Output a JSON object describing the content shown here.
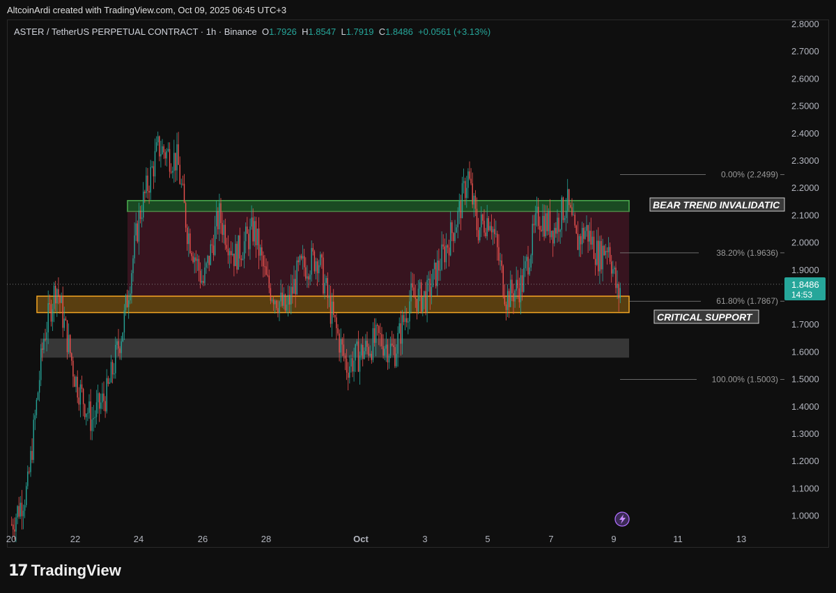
{
  "header": {
    "credit": "AltcoinArdi created with TradingView.com, Oct 09, 2025 06:45 UTC+3"
  },
  "legend": {
    "symbol": "ASTER / TetherUS PERPETUAL CONTRACT · 1h · Binance",
    "o_label": "O",
    "o_value": "1.7926",
    "h_label": "H",
    "h_value": "1.8547",
    "l_label": "L",
    "l_value": "1.7919",
    "c_label": "C",
    "c_value": "1.8486",
    "change": "+0.0561 (+3.13%)"
  },
  "brand": {
    "logo_icon": "tradingview-logo-icon",
    "name": "TradingView"
  },
  "colors": {
    "up": "#26a69a",
    "down": "#ef5350",
    "green_zone": "#2e7d32",
    "orange_zone": "#f5a623",
    "range_fill": "#5a1a2e"
  },
  "chart_data": {
    "type": "candlestick",
    "interval": "1h",
    "x_ticks": [
      "20",
      "22",
      "24",
      "26",
      "28",
      "Oct",
      "3",
      "5",
      "7",
      "9",
      "11",
      "13"
    ],
    "y_ticks": [
      "1.0000",
      "1.1000",
      "1.2000",
      "1.3000",
      "1.4000",
      "1.5000",
      "1.6000",
      "1.7000",
      "1.8000",
      "1.9000",
      "2.0000",
      "2.1000",
      "2.2000",
      "2.3000",
      "2.4000",
      "2.5000",
      "2.6000",
      "2.7000",
      "2.8000"
    ],
    "ylim": [
      0.95,
      2.82
    ],
    "last_price": {
      "value": "1.8486",
      "countdown": "14:53"
    },
    "price_path": [
      [
        "Sep 20",
        0.97
      ],
      [
        "Sep 20.5",
        1.1
      ],
      [
        "Sep 21",
        1.65
      ],
      [
        "Sep 21.4",
        1.85
      ],
      [
        "Sep 22",
        1.5
      ],
      [
        "Sep 22.5",
        1.35
      ],
      [
        "Sep 23",
        1.45
      ],
      [
        "Sep 23.5",
        1.7
      ],
      [
        "Sep 24",
        2.1
      ],
      [
        "Sep 24.6",
        2.35
      ],
      [
        "Sep 25.2",
        2.3
      ],
      [
        "Sep 25.5",
        2.05
      ],
      [
        "Sep 26",
        1.85
      ],
      [
        "Sep 26.5",
        2.1
      ],
      [
        "Sep 27",
        1.95
      ],
      [
        "Sep 27.6",
        2.05
      ],
      [
        "Sep 28",
        1.85
      ],
      [
        "Sep 28.6",
        1.75
      ],
      [
        "Sep 29",
        1.9
      ],
      [
        "Sep 29.6",
        1.95
      ],
      [
        "Sep 30",
        1.75
      ],
      [
        "Sep 30.5",
        1.55
      ],
      [
        "Oct 1",
        1.6
      ],
      [
        "Oct 1.5",
        1.65
      ],
      [
        "Oct 2",
        1.6
      ],
      [
        "Oct 2.5",
        1.8
      ],
      [
        "Oct 3",
        1.8
      ],
      [
        "Oct 3.5",
        1.95
      ],
      [
        "Oct 4",
        2.1
      ],
      [
        "Oct 4.3",
        2.25
      ],
      [
        "Oct 4.6",
        2.05
      ],
      [
        "Oct 5",
        2.1
      ],
      [
        "Oct 5.5",
        1.8
      ],
      [
        "Oct 6",
        1.85
      ],
      [
        "Oct 6.5",
        2.1
      ],
      [
        "Oct 7",
        2.05
      ],
      [
        "Oct 7.4",
        2.15
      ],
      [
        "Oct 7.7",
        2.0
      ],
      [
        "Oct 8",
        2.05
      ],
      [
        "Oct 8.4",
        1.95
      ],
      [
        "Oct 8.7",
        2.0
      ],
      [
        "Oct 9",
        1.8
      ],
      [
        "Oct 9.1",
        1.8486
      ]
    ],
    "zones": [
      {
        "name": "green-zone",
        "low": 2.115,
        "high": 2.155,
        "label": "BEAR TREND INVALIDATIC"
      },
      {
        "name": "range-zone",
        "low": 1.8,
        "high": 2.115,
        "label": ""
      },
      {
        "name": "orange-zone",
        "low": 1.745,
        "high": 1.805,
        "label": "CRITICAL SUPPORT"
      },
      {
        "name": "gray-zone",
        "low": 1.58,
        "high": 1.65,
        "label": ""
      }
    ],
    "fib_levels": [
      {
        "label": "0.00% (2.2499)",
        "value": 2.2499
      },
      {
        "label": "38.20% (1.9636)",
        "value": 1.9636
      },
      {
        "label": "61.80% (1.7867)",
        "value": 1.7867
      },
      {
        "label": "100.00% (1.5003)",
        "value": 1.5003
      }
    ]
  }
}
